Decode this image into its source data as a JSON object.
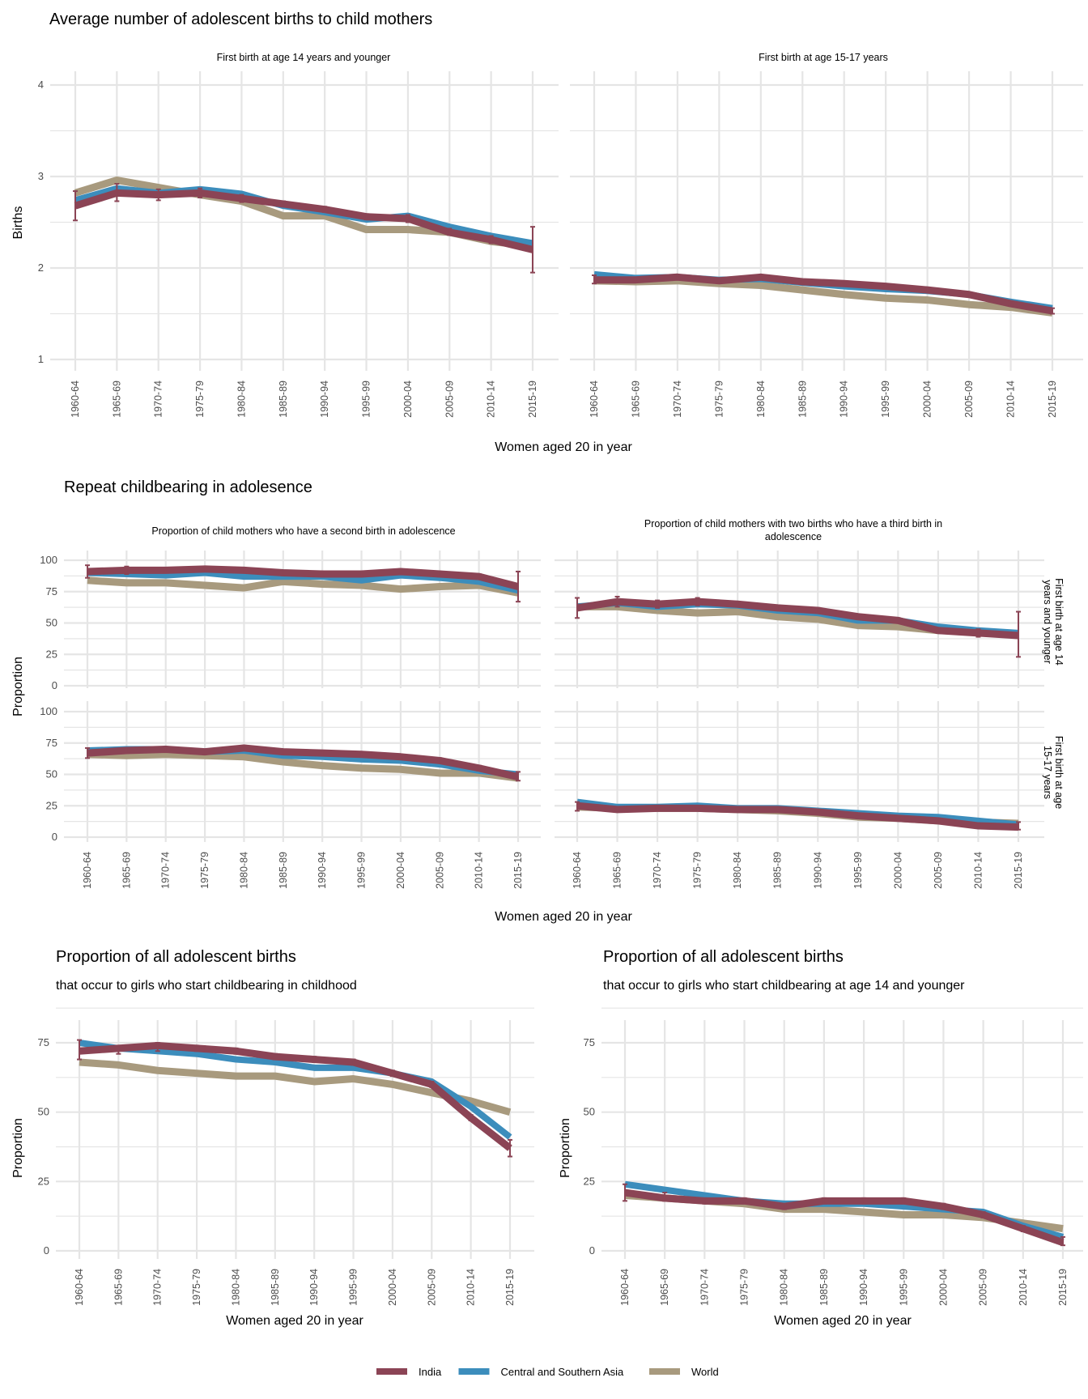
{
  "categories": [
    "1960-64",
    "1965-69",
    "1970-74",
    "1975-79",
    "1980-84",
    "1985-89",
    "1990-94",
    "1995-99",
    "2000-04",
    "2005-09",
    "2010-14",
    "2015-19"
  ],
  "legend": [
    {
      "name": "India",
      "color": "#8B4455"
    },
    {
      "name": "Central and Southern Asia",
      "color": "#3C8DBC"
    },
    {
      "name": "World",
      "color": "#A89A7E"
    }
  ],
  "chart_data": [
    {
      "type": "line",
      "id": "avg-births",
      "title": "Average number of adolescent births to child mothers",
      "ylabel": "Births",
      "xlabel": "Women aged 20 in year",
      "ylim": [
        1,
        4
      ],
      "yticks": [
        1,
        2,
        3,
        4
      ],
      "grid": true,
      "facets": [
        {
          "strip": "First birth at age 14 years and younger",
          "series": [
            {
              "name": "World",
              "values": [
                2.82,
                2.96,
                2.88,
                2.8,
                2.73,
                2.57,
                2.57,
                2.42,
                2.42,
                2.39,
                2.29,
                2.24
              ]
            },
            {
              "name": "Central and Southern Asia",
              "values": [
                2.74,
                2.87,
                2.82,
                2.86,
                2.81,
                2.68,
                2.61,
                2.53,
                2.57,
                2.45,
                2.35,
                2.27
              ]
            },
            {
              "name": "India",
              "values": [
                2.68,
                2.82,
                2.8,
                2.82,
                2.76,
                2.7,
                2.64,
                2.56,
                2.54,
                2.39,
                2.31,
                2.2
              ]
            }
          ],
          "india_error": [
            [
              2.52,
              2.84
            ],
            [
              2.73,
              2.92
            ],
            [
              2.74,
              2.86
            ],
            [
              2.77,
              2.87
            ],
            [
              2.72,
              2.8
            ],
            [
              2.67,
              2.73
            ],
            [
              2.61,
              2.67
            ],
            [
              2.53,
              2.59
            ],
            [
              2.5,
              2.58
            ],
            [
              2.36,
              2.43
            ],
            [
              2.27,
              2.35
            ],
            [
              1.95,
              2.45
            ]
          ]
        },
        {
          "strip": "First birth at age 15-17 years",
          "series": [
            {
              "name": "World",
              "values": [
                1.86,
                1.85,
                1.86,
                1.83,
                1.81,
                1.76,
                1.71,
                1.67,
                1.65,
                1.6,
                1.57,
                1.51
              ]
            },
            {
              "name": "Central and Southern Asia",
              "values": [
                1.93,
                1.89,
                1.9,
                1.87,
                1.88,
                1.84,
                1.8,
                1.77,
                1.75,
                1.71,
                1.63,
                1.56
              ]
            },
            {
              "name": "India",
              "values": [
                1.87,
                1.87,
                1.9,
                1.86,
                1.9,
                1.85,
                1.83,
                1.8,
                1.76,
                1.71,
                1.61,
                1.53
              ]
            }
          ],
          "india_error": [
            [
              1.83,
              1.92
            ],
            [
              1.85,
              1.89
            ],
            [
              1.88,
              1.92
            ],
            [
              1.84,
              1.88
            ],
            [
              1.88,
              1.92
            ],
            [
              1.83,
              1.87
            ],
            [
              1.81,
              1.85
            ],
            [
              1.78,
              1.82
            ],
            [
              1.74,
              1.78
            ],
            [
              1.69,
              1.73
            ],
            [
              1.59,
              1.63
            ],
            [
              1.5,
              1.56
            ]
          ]
        }
      ]
    },
    {
      "type": "line",
      "id": "repeat-childbearing",
      "title": "Repeat childbearing in adolesence",
      "ylabel": "Proportion",
      "xlabel": "Women aged 20 in year",
      "ylim": [
        0,
        100
      ],
      "yticks": [
        0,
        25,
        50,
        75,
        100
      ],
      "grid": true,
      "columns": [
        "Proportion of child mothers who have a second birth in adolescence",
        "Proportion of child mothers with two births who have a third birth in adolescence"
      ],
      "rows": [
        "First birth at age 14 years and younger",
        "First birth at age 15-17 years"
      ],
      "facets": [
        {
          "row": 0,
          "col": 0,
          "series": [
            {
              "name": "World",
              "values": [
                84,
                82,
                82,
                80,
                78,
                83,
                81,
                80,
                77,
                79,
                80,
                74
              ]
            },
            {
              "name": "Central and Southern Asia",
              "values": [
                90,
                89,
                88,
                90,
                87,
                87,
                87,
                84,
                88,
                86,
                83,
                76
              ]
            },
            {
              "name": "India",
              "values": [
                91,
                92,
                92,
                93,
                92,
                90,
                89,
                89,
                91,
                89,
                87,
                79
              ]
            }
          ],
          "india_error": [
            [
              86,
              96
            ],
            [
              89,
              95
            ],
            [
              90,
              94
            ],
            [
              91,
              95
            ],
            [
              90,
              94
            ],
            [
              88,
              92
            ],
            [
              87,
              91
            ],
            [
              87,
              91
            ],
            [
              89,
              93
            ],
            [
              87,
              91
            ],
            [
              85,
              89
            ],
            [
              67,
              91
            ]
          ]
        },
        {
          "row": 0,
          "col": 1,
          "series": [
            {
              "name": "World",
              "values": [
                63,
                63,
                60,
                58,
                59,
                55,
                53,
                48,
                47,
                44,
                43,
                40
              ]
            },
            {
              "name": "Central and Southern Asia",
              "values": [
                63,
                66,
                63,
                65,
                64,
                60,
                58,
                52,
                52,
                47,
                44,
                42
              ]
            },
            {
              "name": "India",
              "values": [
                62,
                67,
                65,
                67,
                65,
                62,
                60,
                55,
                52,
                44,
                42,
                40
              ]
            }
          ],
          "india_error": [
            [
              54,
              70
            ],
            [
              63,
              71
            ],
            [
              62,
              68
            ],
            [
              64,
              70
            ],
            [
              63,
              67
            ],
            [
              60,
              64
            ],
            [
              58,
              62
            ],
            [
              53,
              57
            ],
            [
              50,
              54
            ],
            [
              42,
              46
            ],
            [
              39,
              45
            ],
            [
              23,
              59
            ]
          ]
        },
        {
          "row": 1,
          "col": 0,
          "series": [
            {
              "name": "World",
              "values": [
                66,
                65,
                66,
                65,
                64,
                60,
                57,
                55,
                54,
                51,
                51,
                47
              ]
            },
            {
              "name": "Central and Southern Asia",
              "values": [
                69,
                70,
                70,
                68,
                69,
                65,
                64,
                62,
                61,
                58,
                53,
                50
              ]
            },
            {
              "name": "India",
              "values": [
                67,
                69,
                70,
                68,
                71,
                68,
                67,
                66,
                64,
                61,
                55,
                48
              ]
            }
          ],
          "india_error": [
            [
              63,
              71
            ],
            [
              67,
              71
            ],
            [
              68,
              72
            ],
            [
              66,
              70
            ],
            [
              69,
              73
            ],
            [
              66,
              70
            ],
            [
              65,
              69
            ],
            [
              64,
              68
            ],
            [
              62,
              66
            ],
            [
              59,
              63
            ],
            [
              53,
              57
            ],
            [
              45,
              52
            ]
          ]
        },
        {
          "row": 1,
          "col": 1,
          "series": [
            {
              "name": "World",
              "values": [
                24,
                23,
                23,
                23,
                22,
                21,
                19,
                16,
                15,
                13,
                12,
                11
              ]
            },
            {
              "name": "Central and Southern Asia",
              "values": [
                28,
                24,
                24,
                25,
                23,
                23,
                21,
                19,
                17,
                16,
                13,
                10
              ]
            },
            {
              "name": "India",
              "values": [
                25,
                22,
                23,
                23,
                22,
                22,
                20,
                17,
                15,
                13,
                9,
                8
              ]
            }
          ],
          "india_error": [
            [
              21,
              28
            ],
            [
              21,
              23
            ],
            [
              22,
              24
            ],
            [
              22,
              24
            ],
            [
              21,
              23
            ],
            [
              21,
              23
            ],
            [
              19,
              21
            ],
            [
              16,
              18
            ],
            [
              14,
              16
            ],
            [
              12,
              14
            ],
            [
              8,
              10
            ],
            [
              6,
              12
            ]
          ]
        }
      ]
    },
    {
      "type": "line",
      "id": "prop-childhood",
      "title": "Proportion of all adolescent births",
      "subtitle": "that occur to girls who start childbearing in childhood",
      "ylabel": "Proportion",
      "xlabel": "Women aged 20 in year",
      "ylim": [
        0,
        92
      ],
      "yticks": [
        0,
        25,
        50,
        75
      ],
      "grid": true,
      "series": [
        {
          "name": "World",
          "values": [
            68,
            67,
            65,
            64,
            63,
            63,
            61,
            62,
            60,
            57,
            54,
            50
          ]
        },
        {
          "name": "Central and Southern Asia",
          "values": [
            75,
            73,
            72,
            71,
            69,
            68,
            66,
            66,
            64,
            61,
            52,
            41
          ]
        },
        {
          "name": "India",
          "values": [
            72,
            73,
            74,
            73,
            72,
            70,
            69,
            68,
            64,
            60,
            48,
            37
          ]
        }
      ],
      "india_error": [
        [
          69,
          76
        ],
        [
          71,
          74
        ],
        [
          72,
          75
        ],
        [
          72,
          74
        ],
        [
          71,
          73
        ],
        [
          69,
          71
        ],
        [
          68,
          70
        ],
        [
          67,
          69
        ],
        [
          63,
          65
        ],
        [
          59,
          61
        ],
        [
          47,
          49
        ],
        [
          34,
          40
        ]
      ]
    },
    {
      "type": "line",
      "id": "prop-age14",
      "title": "Proportion of all adolescent births",
      "subtitle": "that occur to girls who start childbearing at age 14 and younger",
      "ylabel": "Proportion",
      "xlabel": "Women aged 20 in year",
      "ylim": [
        0,
        92
      ],
      "yticks": [
        0,
        25,
        50,
        75
      ],
      "grid": true,
      "series": [
        {
          "name": "World",
          "values": [
            20,
            19,
            18,
            17,
            15,
            15,
            14,
            13,
            13,
            12,
            10,
            8
          ]
        },
        {
          "name": "Central and Southern Asia",
          "values": [
            24,
            22,
            20,
            18,
            17,
            17,
            17,
            16,
            15,
            14,
            9,
            5
          ]
        },
        {
          "name": "India",
          "values": [
            21,
            19,
            18,
            18,
            16,
            18,
            18,
            18,
            16,
            13,
            8,
            3
          ]
        }
      ],
      "india_error": [
        [
          18,
          24
        ],
        [
          18,
          21
        ],
        [
          17,
          19
        ],
        [
          17,
          19
        ],
        [
          15,
          17
        ],
        [
          17,
          19
        ],
        [
          17,
          19
        ],
        [
          17,
          19
        ],
        [
          15,
          17
        ],
        [
          12,
          14
        ],
        [
          7,
          9
        ],
        [
          2,
          5
        ]
      ]
    }
  ]
}
